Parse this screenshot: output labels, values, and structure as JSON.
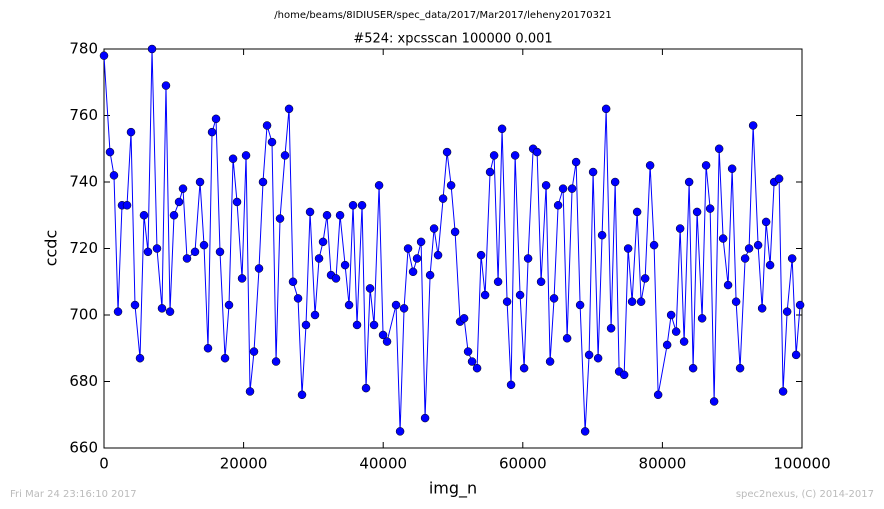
{
  "chart_data": {
    "type": "line",
    "suptitle": "/home/beams/8IDIUSER/spec_data/2017/Mar2017/leheny20170321",
    "title": "#524: xpcsscan 100000 0.001",
    "x_label": "img_n",
    "y_label": "ccdc",
    "annotations": [
      "Fri Mar 24 23:16:10 2017",
      "spec2nexus, (C) 2014-2017"
    ],
    "color": "#0000ff",
    "xlim": [
      0,
      100000
    ],
    "ylim": [
      660,
      780
    ],
    "xticks": [
      0,
      20000,
      40000,
      60000,
      80000,
      100000
    ],
    "yticks": [
      660,
      680,
      700,
      720,
      740,
      760,
      780
    ],
    "x": [
      0,
      860,
      1430,
      2010,
      2580,
      3300,
      3870,
      4440,
      5160,
      5730,
      6300,
      6880,
      7590,
      8310,
      8880,
      9460,
      10030,
      10750,
      11320,
      11890,
      13040,
      13760,
      14330,
      14900,
      15480,
      16050,
      16620,
      17340,
      17910,
      18490,
      19060,
      19780,
      20350,
      20920,
      21490,
      22210,
      22780,
      23360,
      24070,
      24650,
      25220,
      25930,
      26510,
      27080,
      27800,
      28370,
      28940,
      29520,
      30230,
      30810,
      31380,
      31950,
      32530,
      33240,
      33820,
      34540,
      35110,
      35680,
      36250,
      36970,
      37540,
      38120,
      38690,
      39410,
      39980,
      40550,
      41840,
      42420,
      42990,
      43560,
      44280,
      44850,
      45430,
      46000,
      46720,
      47290,
      47860,
      48580,
      49150,
      49730,
      50300,
      51010,
      51590,
      52160,
      52730,
      53450,
      54020,
      54600,
      55310,
      55890,
      56460,
      57030,
      57750,
      58320,
      58900,
      59610,
      60190,
      60760,
      61480,
      62050,
      62620,
      63340,
      63910,
      64480,
      65060,
      65770,
      66350,
      67060,
      67640,
      68210,
      68930,
      69500,
      70070,
      70790,
      71360,
      71940,
      72650,
      73230,
      73800,
      74520,
      75090,
      75660,
      76380,
      76950,
      77530,
      78240,
      78810,
      79390,
      80680,
      81250,
      81970,
      82540,
      83110,
      83830,
      84400,
      84970,
      85690,
      86260,
      86840,
      87410,
      88130,
      88700,
      89410,
      89990,
      90560,
      91130,
      91850,
      92420,
      93000,
      93710,
      94290,
      94860,
      95430,
      96010,
      96720,
      97290,
      97870,
      98590,
      99160,
      99730
    ],
    "values": [
      778,
      749,
      742,
      701,
      733,
      733,
      755,
      703,
      687,
      730,
      719,
      780,
      720,
      702,
      769,
      701,
      730,
      734,
      738,
      717,
      719,
      740,
      721,
      690,
      755,
      759,
      719,
      687,
      703,
      747,
      734,
      711,
      748,
      677,
      689,
      714,
      740,
      757,
      752,
      686,
      729,
      748,
      762,
      710,
      705,
      676,
      697,
      731,
      700,
      717,
      722,
      730,
      712,
      711,
      730,
      715,
      703,
      733,
      697,
      733,
      678,
      708,
      697,
      739,
      694,
      692,
      703,
      665,
      702,
      720,
      713,
      717,
      722,
      669,
      712,
      726,
      718,
      735,
      749,
      739,
      725,
      698,
      699,
      689,
      686,
      684,
      718,
      706,
      743,
      748,
      710,
      756,
      704,
      679,
      748,
      706,
      684,
      717,
      750,
      749,
      710,
      739,
      686,
      705,
      733,
      738,
      693,
      738,
      746,
      703,
      665,
      688,
      743,
      687,
      724,
      762,
      696,
      740,
      683,
      682,
      720,
      704,
      731,
      704,
      711,
      745,
      721,
      676,
      691,
      700,
      695,
      726,
      692,
      740,
      684,
      731,
      699,
      745,
      732,
      674,
      750,
      723,
      709,
      744,
      704,
      684,
      717,
      720,
      757,
      721,
      702,
      728,
      715,
      740,
      741,
      677,
      701,
      717,
      688,
      703
    ]
  }
}
